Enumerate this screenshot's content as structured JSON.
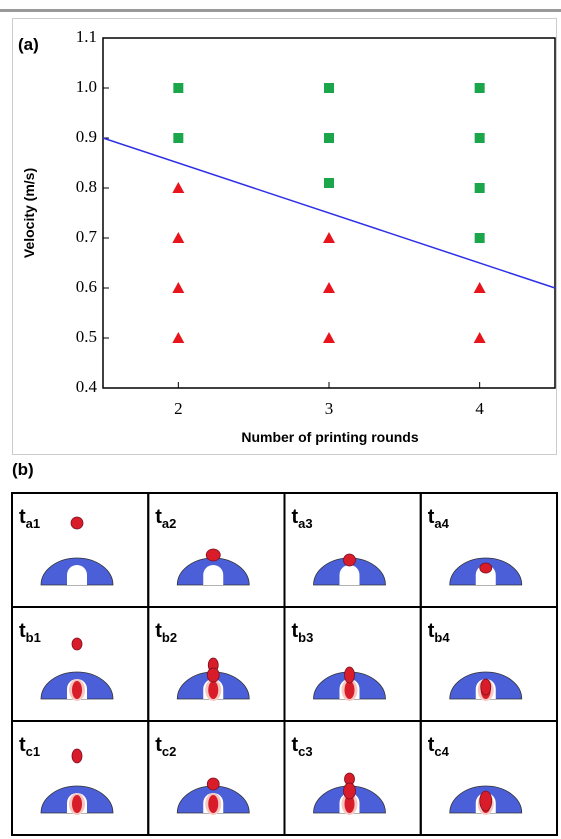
{
  "chart_data": {
    "type": "scatter",
    "panel_label": "(a)",
    "xlabel": "Number of printing rounds",
    "ylabel": "Velocity (m/s)",
    "xlim": [
      1.5,
      4.5
    ],
    "ylim": [
      0.4,
      1.1
    ],
    "xticks": [
      2,
      3,
      4
    ],
    "yticks": [
      0.4,
      0.5,
      0.6,
      0.7,
      0.8,
      0.9,
      {
        "value": 1,
        "label": "1.0"
      },
      1.1
    ],
    "series": [
      {
        "type": "scatter",
        "marker": "square",
        "color": "#1ca64c",
        "x": [
          2,
          2,
          3,
          3,
          3,
          4,
          4,
          4,
          4
        ],
        "values": [
          1.0,
          0.9,
          1.0,
          0.9,
          0.81,
          1.0,
          0.9,
          0.8,
          0.7
        ]
      },
      {
        "type": "scatter",
        "marker": "triangle",
        "color": "#e8141c",
        "x": [
          2,
          2,
          2,
          2,
          3,
          3,
          3,
          4,
          4
        ],
        "values": [
          0.8,
          0.7,
          0.6,
          0.5,
          0.7,
          0.6,
          0.5,
          0.6,
          0.5
        ]
      },
      {
        "type": "line",
        "color": "#2f2fe8",
        "x": [
          1.5,
          4.5
        ],
        "values": [
          0.9,
          0.6
        ]
      }
    ]
  },
  "panel_b": {
    "label": "(b)",
    "rows": [
      [
        {
          "t": "t",
          "sub": "a1"
        },
        {
          "t": "t",
          "sub": "a2"
        },
        {
          "t": "t",
          "sub": "a3"
        },
        {
          "t": "t",
          "sub": "a4"
        }
      ],
      [
        {
          "t": "t",
          "sub": "b1"
        },
        {
          "t": "t",
          "sub": "b2"
        },
        {
          "t": "t",
          "sub": "b3"
        },
        {
          "t": "t",
          "sub": "b4"
        }
      ],
      [
        {
          "t": "t",
          "sub": "c1"
        },
        {
          "t": "t",
          "sub": "c2"
        },
        {
          "t": "t",
          "sub": "c3"
        },
        {
          "t": "t",
          "sub": "c4"
        }
      ]
    ]
  }
}
